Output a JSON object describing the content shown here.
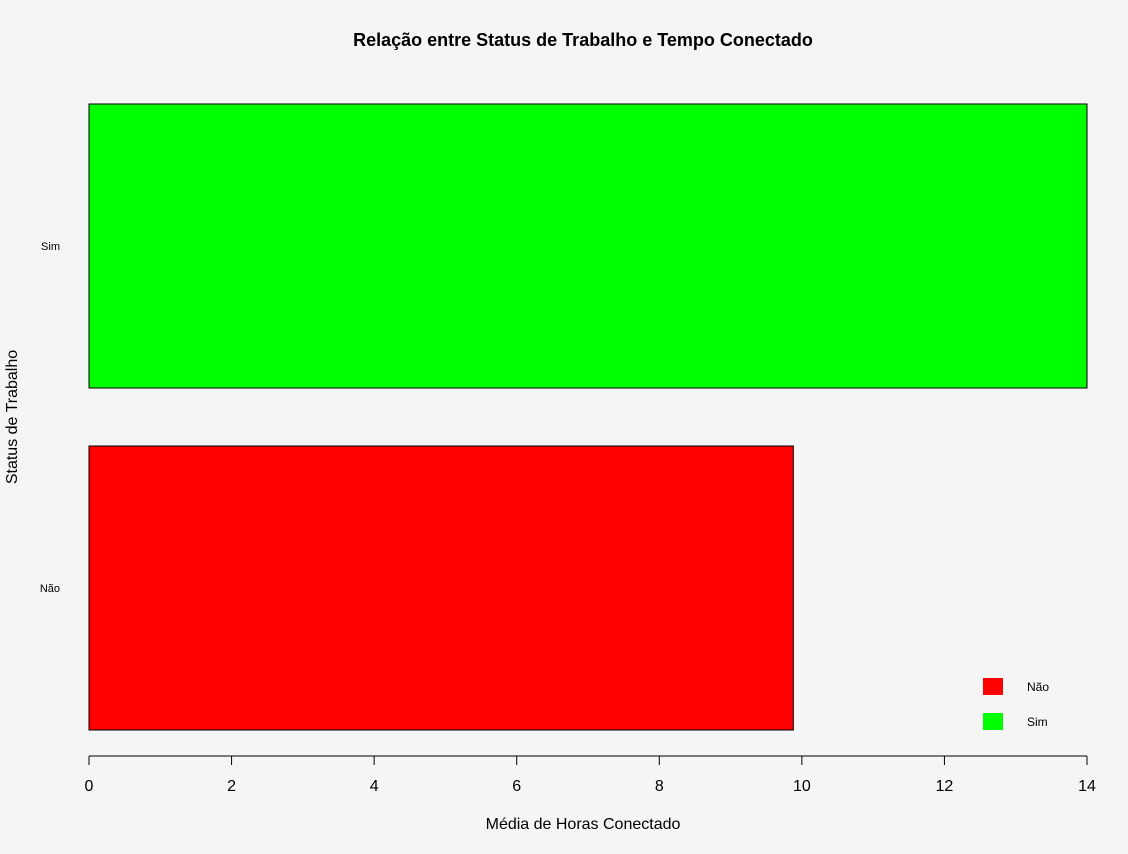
{
  "chart_data": {
    "type": "bar",
    "orientation": "horizontal",
    "title": "Relação entre Status de Trabalho e Tempo Conectado",
    "xlabel": "Média de Horas Conectado",
    "ylabel": "Status de Trabalho",
    "categories": [
      "Não",
      "Sim"
    ],
    "values": [
      9.88,
      14.0
    ],
    "colors": [
      "#ff0000",
      "#00ff00"
    ],
    "xlim": [
      0,
      14
    ],
    "xticks": [
      0,
      2,
      4,
      6,
      8,
      10,
      12,
      14
    ],
    "grid": false,
    "legend": {
      "placement": "bottom-right",
      "entries": [
        {
          "label": "Não",
          "color": "#ff0000"
        },
        {
          "label": "Sim",
          "color": "#00ff00"
        }
      ]
    }
  }
}
